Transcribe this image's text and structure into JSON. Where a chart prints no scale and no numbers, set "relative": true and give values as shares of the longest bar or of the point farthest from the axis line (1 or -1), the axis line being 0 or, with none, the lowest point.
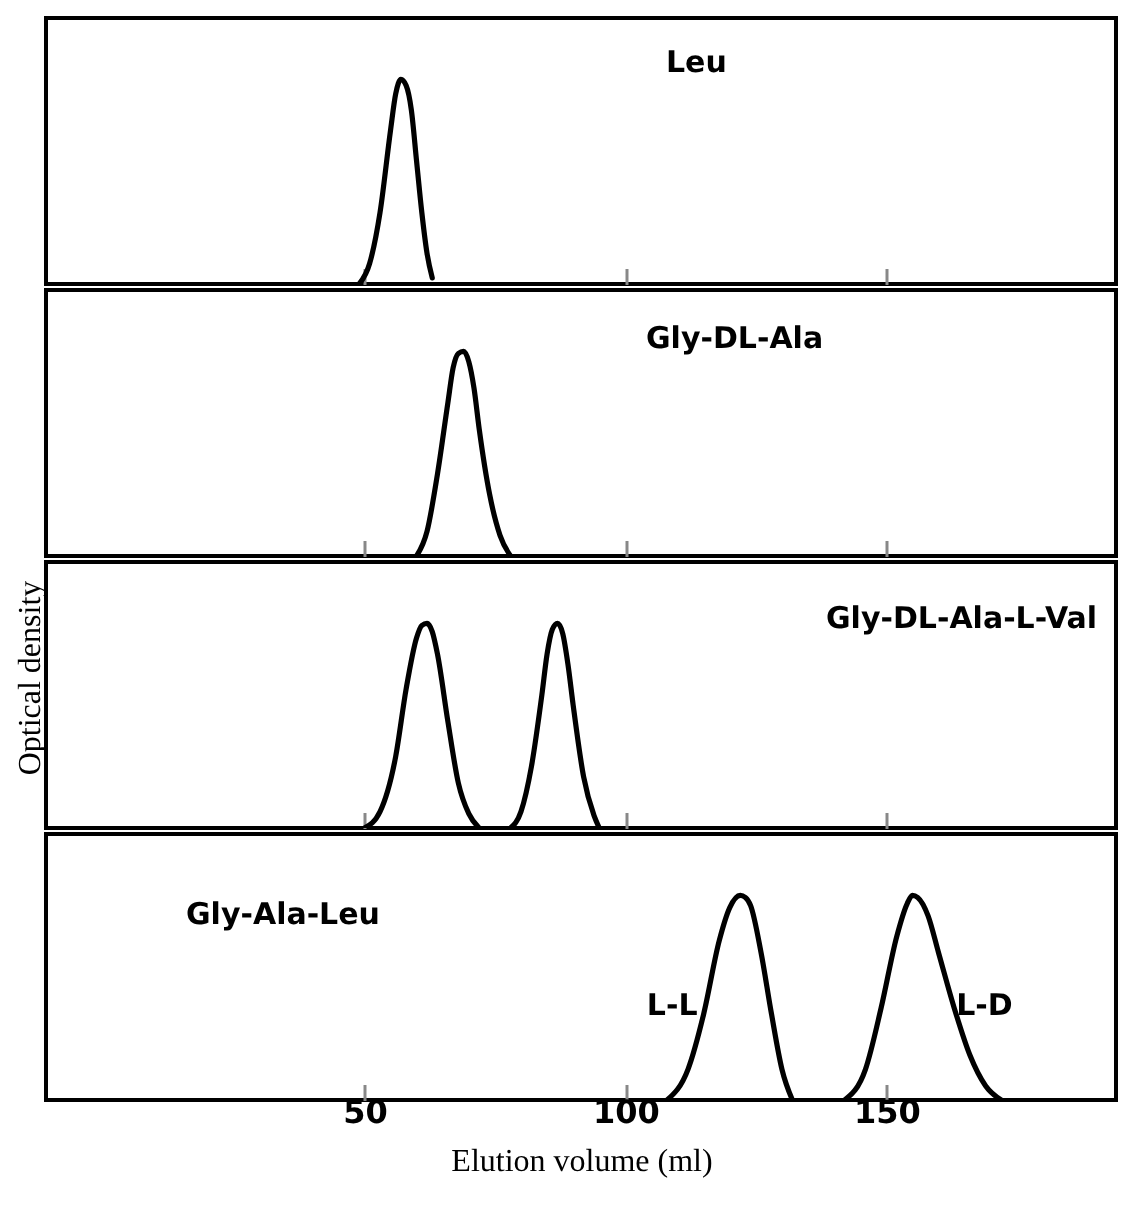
{
  "chart_data": [
    {
      "type": "line",
      "title": "Leu",
      "relative": true,
      "xlim": [
        -11,
        194
      ],
      "xticks": [
        50,
        100,
        150
      ],
      "tick_labels": false,
      "series": [
        {
          "color": "#000000",
          "x": [
            49,
            51,
            53,
            55,
            56,
            57,
            58,
            59,
            60,
            61,
            62,
            63
          ],
          "values": [
            0,
            0.1,
            0.35,
            0.75,
            0.93,
            1,
            0.97,
            0.85,
            0.6,
            0.35,
            0.15,
            0.03
          ]
        }
      ]
    },
    {
      "type": "line",
      "title": "Gly-DL-Ala",
      "relative": true,
      "xlim": [
        -11,
        194
      ],
      "xticks": [
        50,
        100,
        150
      ],
      "tick_labels": false,
      "series": [
        {
          "color": "#000000",
          "x": [
            60,
            62,
            64,
            66,
            67,
            68,
            69,
            70,
            71,
            72,
            74,
            76,
            78
          ],
          "values": [
            0,
            0.12,
            0.4,
            0.75,
            0.92,
            0.99,
            1,
            0.95,
            0.82,
            0.62,
            0.3,
            0.1,
            0
          ]
        }
      ]
    },
    {
      "type": "line",
      "title": "Gly-DL-Ala-L-Val",
      "ylabel": "Optical density",
      "relative": true,
      "xlim": [
        -11,
        194
      ],
      "xticks": [
        50,
        100,
        150
      ],
      "tick_labels": false,
      "series": [
        {
          "color": "#000000",
          "x": [
            50,
            53,
            56,
            58,
            60,
            61,
            62,
            63,
            64,
            66,
            68,
            70,
            72
          ],
          "values": [
            0,
            0.08,
            0.35,
            0.68,
            0.93,
            0.99,
            1,
            0.96,
            0.85,
            0.52,
            0.22,
            0.07,
            0
          ]
        },
        {
          "color": "#000000",
          "x": [
            78,
            80,
            82,
            84,
            85,
            86,
            87,
            88,
            89,
            90,
            92,
            94,
            95
          ],
          "values": [
            0,
            0.08,
            0.3,
            0.65,
            0.85,
            0.97,
            1,
            0.95,
            0.8,
            0.6,
            0.25,
            0.06,
            0
          ]
        }
      ]
    },
    {
      "type": "line",
      "title": "Gly-Ala-Leu",
      "relative": true,
      "xlim": [
        -11,
        194
      ],
      "xticks": [
        50,
        100,
        150
      ],
      "tick_labels": "x",
      "xlabel": "Elution volume (ml)",
      "series": [
        {
          "name": "L-L",
          "color": "#000000",
          "x": [
            108,
            112,
            115,
            118,
            120,
            122,
            123,
            124,
            126,
            128,
            130,
            132
          ],
          "values": [
            0,
            0.15,
            0.42,
            0.78,
            0.94,
            1,
            0.99,
            0.95,
            0.72,
            0.42,
            0.15,
            0
          ]
        },
        {
          "name": "L-D",
          "color": "#000000",
          "x": [
            142,
            146,
            149,
            152,
            154,
            155,
            156,
            158,
            160,
            163,
            166,
            169,
            172
          ],
          "values": [
            0,
            0.15,
            0.45,
            0.8,
            0.96,
            1,
            0.99,
            0.9,
            0.72,
            0.45,
            0.22,
            0.07,
            0
          ]
        }
      ]
    }
  ]
}
